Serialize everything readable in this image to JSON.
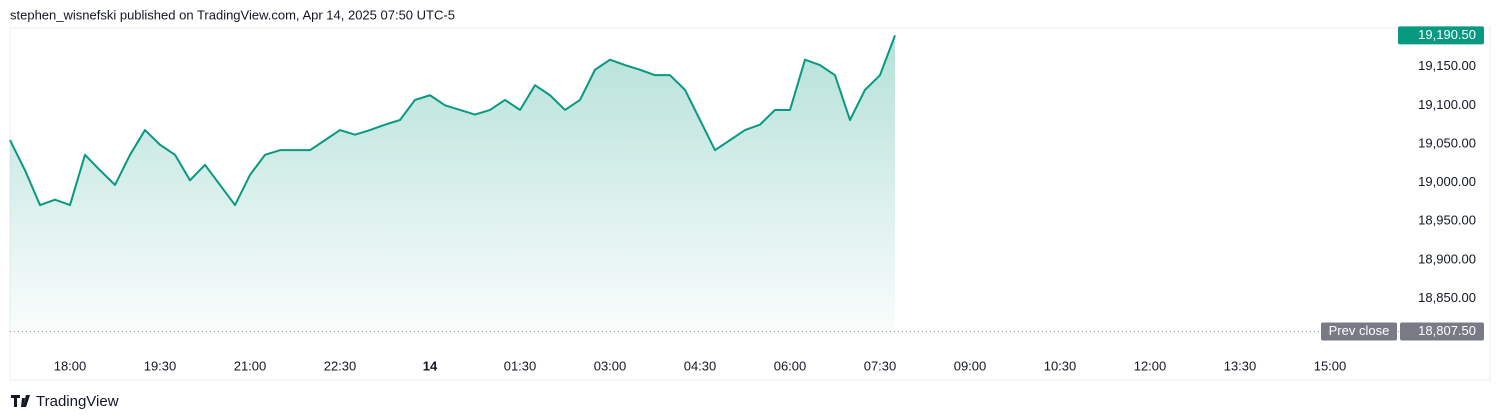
{
  "chart_data": {
    "type": "area",
    "title": "stephen_wisnefski published on TradingView.com, Apr 14, 2025 07:50 UTC-5",
    "brand": "TradingView",
    "categories": [
      null,
      null,
      null,
      null,
      "18:00",
      null,
      null,
      null,
      null,
      null,
      "19:30",
      null,
      null,
      null,
      null,
      null,
      "21:00",
      null,
      null,
      null,
      null,
      null,
      "22:30",
      null,
      null,
      null,
      null,
      null,
      "14",
      null,
      null,
      null,
      null,
      null,
      "01:30",
      null,
      null,
      null,
      null,
      null,
      "03:00",
      null,
      null,
      null,
      null,
      null,
      "04:30",
      null,
      null,
      null,
      null,
      null,
      "06:00",
      null,
      null,
      null,
      null,
      null,
      "07:30",
      null,
      null,
      null,
      null,
      null,
      "09:00",
      null,
      null,
      null,
      null,
      null,
      "10:30",
      null,
      null,
      null,
      null,
      null,
      "12:00",
      null,
      null,
      null,
      null,
      null,
      "13:30",
      null,
      null,
      null,
      null,
      null,
      "15:00",
      null,
      null,
      null,
      null
    ],
    "series": [
      {
        "color": "#089981",
        "values": [
          19055,
          19016,
          18971,
          18978,
          18971,
          19036,
          19016,
          18997,
          19036,
          19068,
          19049,
          19036,
          19003,
          19023,
          18997,
          18971,
          19010,
          19036,
          19042,
          19042,
          19042,
          19055,
          19068,
          19062,
          19068,
          19075,
          19081,
          19107,
          19113,
          19100,
          19094,
          19088,
          19094,
          19107,
          19094,
          19126,
          19113,
          19094,
          19107,
          19146,
          19159,
          19152,
          19146,
          19139,
          19139,
          19120,
          19081,
          19042,
          19055,
          19068,
          19075,
          19094,
          19094,
          19159,
          19152,
          19139,
          19081,
          19120,
          19139,
          19190.5,
          null,
          null,
          null,
          null,
          null,
          null,
          null,
          null,
          null,
          null,
          null,
          null,
          null,
          null,
          null,
          null,
          null,
          null,
          null,
          null,
          null,
          null,
          null,
          null,
          null,
          null,
          null,
          null,
          null,
          null,
          null,
          null,
          null
        ],
        "value_labels": {
          "59": "19,190.50"
        }
      }
    ],
    "prev_close": {
      "name": "Prev close",
      "value": 18807.5,
      "label": "18,807.50"
    },
    "ylim": [
      18790,
      19200
    ],
    "yticks": [
      {
        "value": 18850,
        "label": "18,850.00"
      },
      {
        "value": 18900,
        "label": "18,900.00"
      },
      {
        "value": 18950,
        "label": "18,950.00"
      },
      {
        "value": 19000,
        "label": "19,000.00"
      },
      {
        "value": 19050,
        "label": "19,050.00"
      },
      {
        "value": 19100,
        "label": "19,100.00"
      },
      {
        "value": 19150,
        "label": "19,150.00"
      }
    ]
  }
}
